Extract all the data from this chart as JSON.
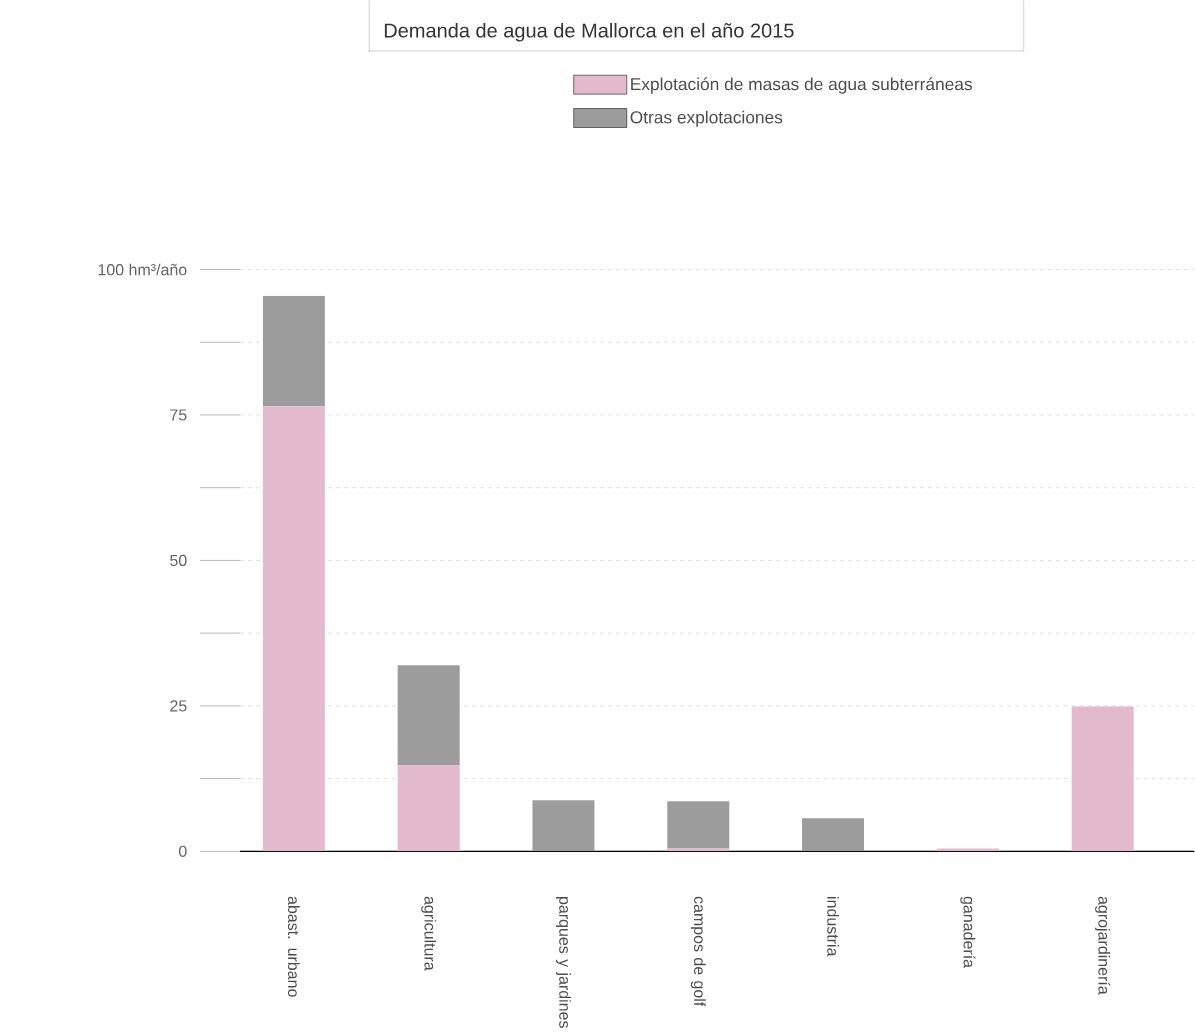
{
  "chart_data": {
    "type": "bar",
    "title": "Demanda de agua de Mallorca en el año 2015",
    "categories": [
      "abast. urbano",
      "agricultura",
      "parques y jardines",
      "campos de golf",
      "industria",
      "ganadería",
      "agrojardinería"
    ],
    "series": [
      {
        "name": "Explotación de masas de agua subterráneas",
        "color": "#e2b9cd",
        "values": [
          76.5,
          14.8,
          0,
          0.5,
          0,
          0.5,
          24.9
        ]
      },
      {
        "name": "Otras explotaciones",
        "color": "#9c9c9c",
        "values": [
          19,
          17.2,
          8.8,
          8.1,
          5.7,
          0,
          0
        ]
      }
    ],
    "stacked": true,
    "ylim": [
      0,
      100
    ],
    "yticks": [
      0,
      {
        "value": 12.5,
        "label": null
      },
      25,
      {
        "value": 37.5,
        "label": null
      },
      50,
      {
        "value": 62.5,
        "label": null
      },
      75,
      {
        "value": 87.5,
        "label": null
      },
      {
        "value": 100,
        "label": "100 hm³/año"
      }
    ],
    "grid": "y",
    "legend": "top"
  }
}
